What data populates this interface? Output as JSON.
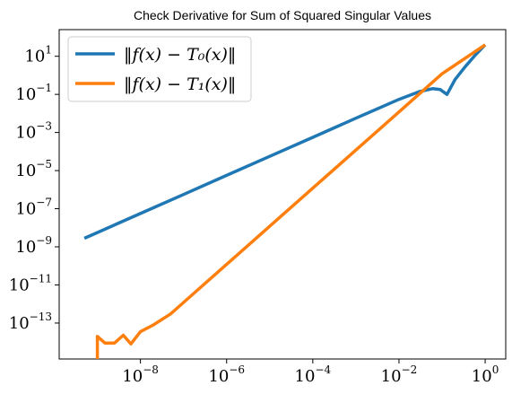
{
  "chart_data": {
    "type": "line",
    "title": "Check Derivative for Sum of Squared Singular Values",
    "xlabel": "",
    "ylabel": "",
    "xscale": "log",
    "yscale": "log",
    "xlim": [
      1.3e-10,
      3.0
    ],
    "ylim": [
      1.3e-15,
      250
    ],
    "grid": false,
    "legend_position": "top-left",
    "x_ticks": [
      {
        "base": "10",
        "exp": "−8",
        "value": 1e-08
      },
      {
        "base": "10",
        "exp": "−6",
        "value": 1e-06
      },
      {
        "base": "10",
        "exp": "−4",
        "value": 0.0001
      },
      {
        "base": "10",
        "exp": "−2",
        "value": 0.01
      },
      {
        "base": "10",
        "exp": "0",
        "value": 1
      }
    ],
    "y_ticks": [
      {
        "base": "10",
        "exp": "1",
        "value": 10
      },
      {
        "base": "10",
        "exp": "−1",
        "value": 0.1
      },
      {
        "base": "10",
        "exp": "−3",
        "value": 0.001
      },
      {
        "base": "10",
        "exp": "−5",
        "value": 1e-05
      },
      {
        "base": "10",
        "exp": "−7",
        "value": 1e-07
      },
      {
        "base": "10",
        "exp": "−9",
        "value": 1e-09
      },
      {
        "base": "10",
        "exp": "−11",
        "value": 1e-11
      },
      {
        "base": "10",
        "exp": "−13",
        "value": 1e-13
      }
    ],
    "series": [
      {
        "name": "‖f(x) − T₀(x)‖",
        "color": "#1f77b4",
        "points": [
          [
            5e-10,
            2.8e-09
          ],
          [
            1e-09,
            5.6e-09
          ],
          [
            1e-08,
            5.6e-08
          ],
          [
            1e-07,
            5.6e-07
          ],
          [
            1e-06,
            5.6e-06
          ],
          [
            1e-05,
            5.6e-05
          ],
          [
            0.0001,
            0.00056
          ],
          [
            0.001,
            0.0056
          ],
          [
            0.01,
            0.055
          ],
          [
            0.03,
            0.14
          ],
          [
            0.06,
            0.2
          ],
          [
            0.09,
            0.18
          ],
          [
            0.13,
            0.1
          ],
          [
            0.2,
            0.6
          ],
          [
            0.35,
            3
          ],
          [
            0.6,
            12
          ],
          [
            1.0,
            40
          ]
        ]
      },
      {
        "name": "‖f(x) − T₁(x)‖",
        "color": "#ff7f0e",
        "points": [
          [
            1e-09,
            1e-15
          ],
          [
            1e-09,
            2e-14
          ],
          [
            1.5e-09,
            9e-15
          ],
          [
            2.5e-09,
            9e-15
          ],
          [
            4e-09,
            2.3e-14
          ],
          [
            6e-09,
            8e-15
          ],
          [
            1e-08,
            3.5e-14
          ],
          [
            2e-08,
            8e-14
          ],
          [
            5e-08,
            3e-13
          ],
          [
            1e-07,
            1.2e-12
          ],
          [
            1e-06,
            1.2e-10
          ],
          [
            1e-05,
            1.2e-08
          ],
          [
            0.0001,
            1.2e-06
          ],
          [
            0.001,
            0.00012
          ],
          [
            0.01,
            0.012
          ],
          [
            0.1,
            1.2
          ],
          [
            1.0,
            40
          ]
        ]
      }
    ]
  }
}
